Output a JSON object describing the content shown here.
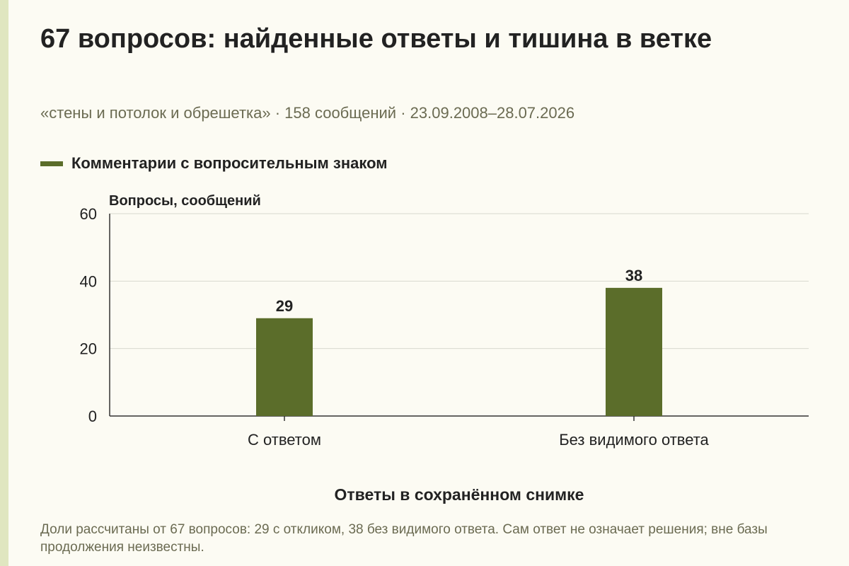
{
  "title": "67 вопросов: найденные ответы и тишина в ветке",
  "subtitle": "«стены и потолок и обрешетка» · 158 сообщений · 23.09.2008–28.07.2026",
  "note": "Доли рассчитаны от 67 вопросов: 29 с откликом, 38 без видимого ответа. Сам ответ не означает решения; вне базы продолжения неизвестны.",
  "colors": {
    "bar": "#5b6d2a",
    "grid": "#d9d9cf",
    "axis": "#333333"
  },
  "chart_data": {
    "type": "bar",
    "categories": [
      "С ответом",
      "Без видимого ответа"
    ],
    "series": [
      {
        "name": "Комментарии с вопросительным знаком",
        "values": [
          29,
          38
        ]
      }
    ],
    "data_labels": [
      "29",
      "38"
    ],
    "xlabel": "Ответы в сохранённом снимке",
    "ylabel": "Вопросы, сообщений",
    "ylim": [
      0,
      60
    ],
    "yticks": [
      0,
      20,
      40,
      60
    ],
    "grid": true,
    "legend": "top-left"
  }
}
